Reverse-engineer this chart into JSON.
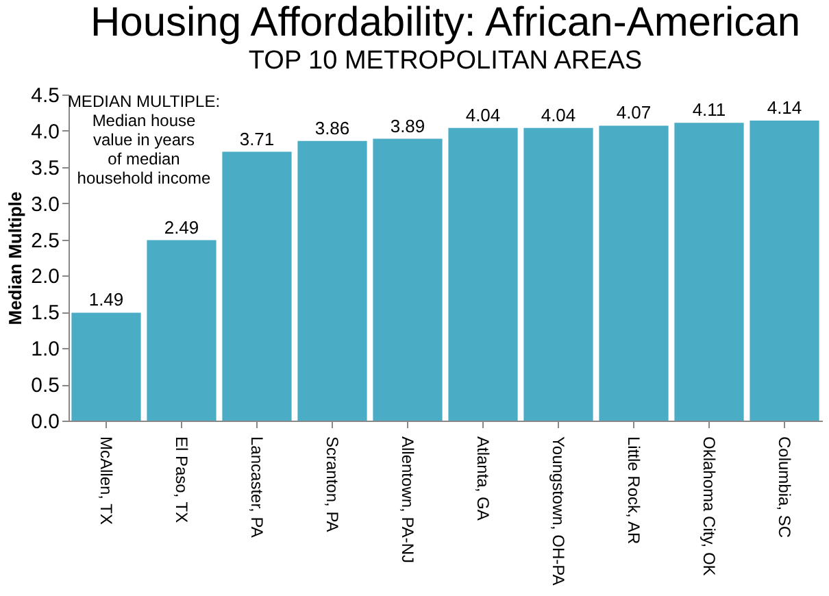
{
  "chart_data": {
    "type": "bar",
    "title": "Housing Affordability: African-American",
    "subtitle": "TOP 10 METROPOLITAN AREAS",
    "ylabel": "Median Multiple",
    "categories": [
      "McAllen, TX",
      "El Paso, TX",
      "Lancaster, PA",
      "Scranton, PA",
      "Allentown, PA-NJ",
      "Atlanta, GA",
      "Youngstown, OH-PA",
      "Little Rock, AR",
      "Oklahoma City, OK",
      "Columbia, SC"
    ],
    "values": [
      1.49,
      2.49,
      3.71,
      3.86,
      3.89,
      4.04,
      4.04,
      4.07,
      4.11,
      4.14
    ],
    "color": "#4bacc6",
    "ylim": [
      0,
      4.5
    ],
    "yticks": [
      {
        "value": 0,
        "label": "0.0"
      },
      0.5,
      {
        "value": 1,
        "label": "1.0"
      },
      1.5,
      {
        "value": 2,
        "label": "2.0"
      },
      2.5,
      {
        "value": 3,
        "label": "3.0"
      },
      3.5,
      {
        "value": 4,
        "label": "4.0"
      },
      4.5
    ],
    "data_labels": true,
    "grid": false,
    "legend": false,
    "annotations": [
      "MEDIAN MULTIPLE: Median house value in years of median household income"
    ]
  }
}
